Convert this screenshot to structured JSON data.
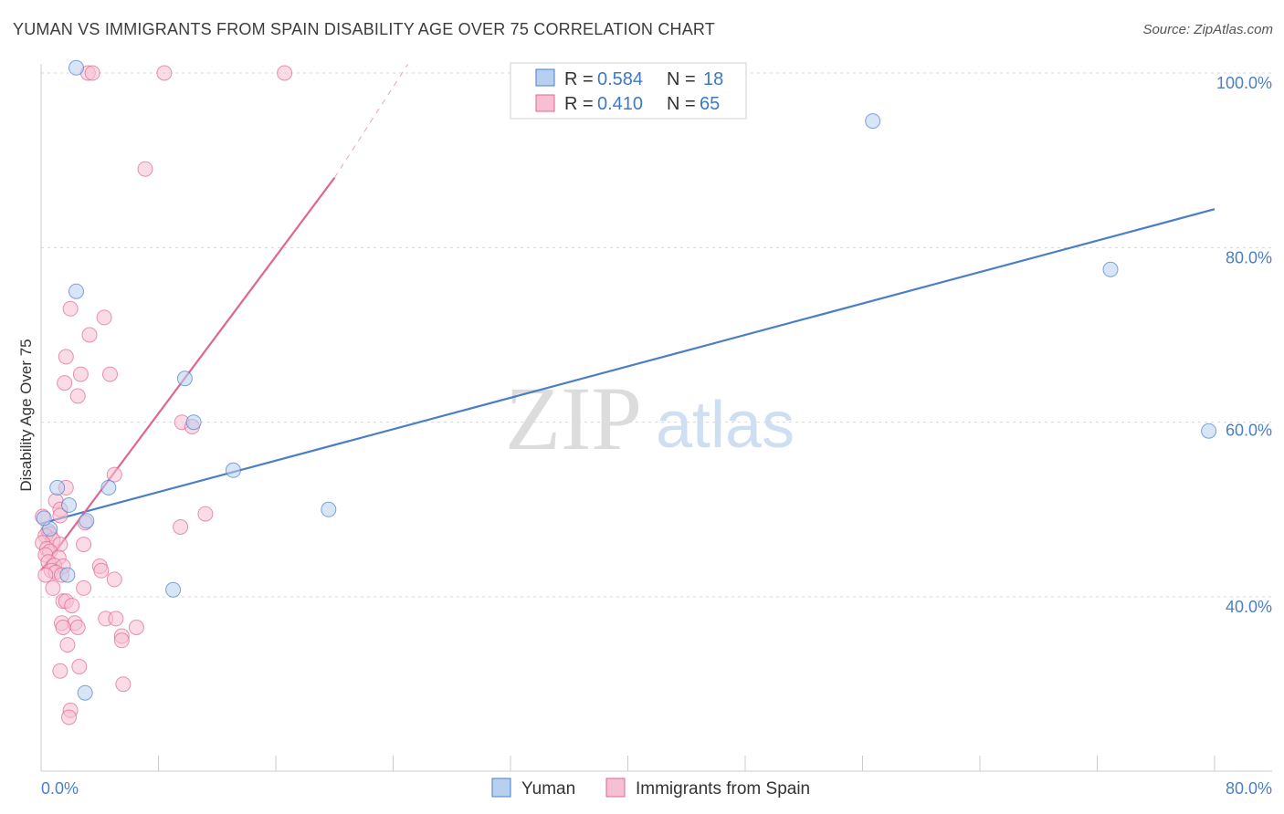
{
  "title": "YUMAN VS IMMIGRANTS FROM SPAIN DISABILITY AGE OVER 75 CORRELATION CHART",
  "source": "Source: ZipAtlas.com",
  "watermark": {
    "zip": "ZIP",
    "atlas": "atlas"
  },
  "colors": {
    "yuman": "#4a7fc7",
    "yuman_fill": "#b8d0f0",
    "spain": "#e06690",
    "spain_fill": "#f7c0d2",
    "grid": "#d8d8d8",
    "tick_label": "#4a7fc7"
  },
  "legend": {
    "rows": [
      {
        "r_label": "R =",
        "r_value": "0.584",
        "n_label": "N =",
        "n_value": "18"
      },
      {
        "r_label": "R =",
        "r_value": "0.410",
        "n_label": "N =",
        "n_value": "65"
      }
    ]
  },
  "chart_data": {
    "type": "scatter",
    "title": "YUMAN VS IMMIGRANTS FROM SPAIN DISABILITY AGE OVER 75 CORRELATION CHART",
    "xlabel": "",
    "ylabel": "Disability Age Over 75",
    "xlim": [
      0,
      80
    ],
    "ylim": [
      20,
      100
    ],
    "x_tick_labels": [
      "0.0%",
      "80.0%"
    ],
    "y_ticks": [
      40,
      60,
      80,
      100
    ],
    "y_tick_labels": [
      "40.0%",
      "60.0%",
      "80.0%",
      "100.0%"
    ],
    "grid": true,
    "series": [
      {
        "name": "Yuman",
        "r": 0.584,
        "n": 18,
        "trend": {
          "x0": 0,
          "y0": 48.4,
          "x1": 80,
          "y1": 84.4
        },
        "points": [
          [
            2.4,
            100.6
          ],
          [
            56.7,
            94.5
          ],
          [
            72.9,
            77.5
          ],
          [
            2.4,
            75.0
          ],
          [
            9.8,
            65.0
          ],
          [
            10.4,
            60.0
          ],
          [
            13.1,
            54.5
          ],
          [
            1.1,
            52.5
          ],
          [
            4.6,
            52.5
          ],
          [
            1.9,
            50.5
          ],
          [
            19.6,
            50.0
          ],
          [
            3.1,
            48.7
          ],
          [
            0.6,
            47.8
          ],
          [
            0.2,
            49.0
          ],
          [
            1.8,
            42.5
          ],
          [
            9.0,
            40.8
          ],
          [
            3.0,
            29.0
          ],
          [
            79.6,
            59.0
          ]
        ]
      },
      {
        "name": "Immigrants from Spain",
        "r": 0.41,
        "n": 65,
        "trend": {
          "x0": 0,
          "y0": 43.0,
          "x1": 20,
          "y1": 88.0,
          "dashed_to": {
            "x": 25,
            "y": 101.0
          }
        },
        "points": [
          [
            3.2,
            100.0
          ],
          [
            3.5,
            100.0
          ],
          [
            8.4,
            100.0
          ],
          [
            16.6,
            100.0
          ],
          [
            7.1,
            89.0
          ],
          [
            2.0,
            73.0
          ],
          [
            4.3,
            72.0
          ],
          [
            3.3,
            70.0
          ],
          [
            1.7,
            67.5
          ],
          [
            2.7,
            65.5
          ],
          [
            4.7,
            65.5
          ],
          [
            1.6,
            64.5
          ],
          [
            2.5,
            63.0
          ],
          [
            9.6,
            60.0
          ],
          [
            10.3,
            59.5
          ],
          [
            5.0,
            54.0
          ],
          [
            1.7,
            52.5
          ],
          [
            1.0,
            51.0
          ],
          [
            1.3,
            50.0
          ],
          [
            11.2,
            49.5
          ],
          [
            1.3,
            49.3
          ],
          [
            3.0,
            48.5
          ],
          [
            9.5,
            48.0
          ],
          [
            0.5,
            47.5
          ],
          [
            0.6,
            47.2
          ],
          [
            0.3,
            47.0
          ],
          [
            0.8,
            46.5
          ],
          [
            0.1,
            46.2
          ],
          [
            1.3,
            46.0
          ],
          [
            2.9,
            46.0
          ],
          [
            0.4,
            45.5
          ],
          [
            0.6,
            45.2
          ],
          [
            0.3,
            44.8
          ],
          [
            1.2,
            44.5
          ],
          [
            0.5,
            44.0
          ],
          [
            0.9,
            43.6
          ],
          [
            1.5,
            43.5
          ],
          [
            4.0,
            43.5
          ],
          [
            0.7,
            43.0
          ],
          [
            1.0,
            42.8
          ],
          [
            0.3,
            42.5
          ],
          [
            1.4,
            42.5
          ],
          [
            4.1,
            43.0
          ],
          [
            5.0,
            42.0
          ],
          [
            2.9,
            41.0
          ],
          [
            0.8,
            41.0
          ],
          [
            1.5,
            39.5
          ],
          [
            1.7,
            39.5
          ],
          [
            2.1,
            39.0
          ],
          [
            4.4,
            37.5
          ],
          [
            5.1,
            37.5
          ],
          [
            1.4,
            37.0
          ],
          [
            2.3,
            37.0
          ],
          [
            6.5,
            36.5
          ],
          [
            1.5,
            36.5
          ],
          [
            2.5,
            36.5
          ],
          [
            5.5,
            35.5
          ],
          [
            5.5,
            35.0
          ],
          [
            1.8,
            34.5
          ],
          [
            2.6,
            32.0
          ],
          [
            1.3,
            31.5
          ],
          [
            5.6,
            30.0
          ],
          [
            2.0,
            27.0
          ],
          [
            1.9,
            26.2
          ],
          [
            0.1,
            49.2
          ]
        ]
      }
    ],
    "legend_entries": [
      "Yuman",
      "Immigrants from Spain"
    ],
    "legend_position": "top-center"
  }
}
